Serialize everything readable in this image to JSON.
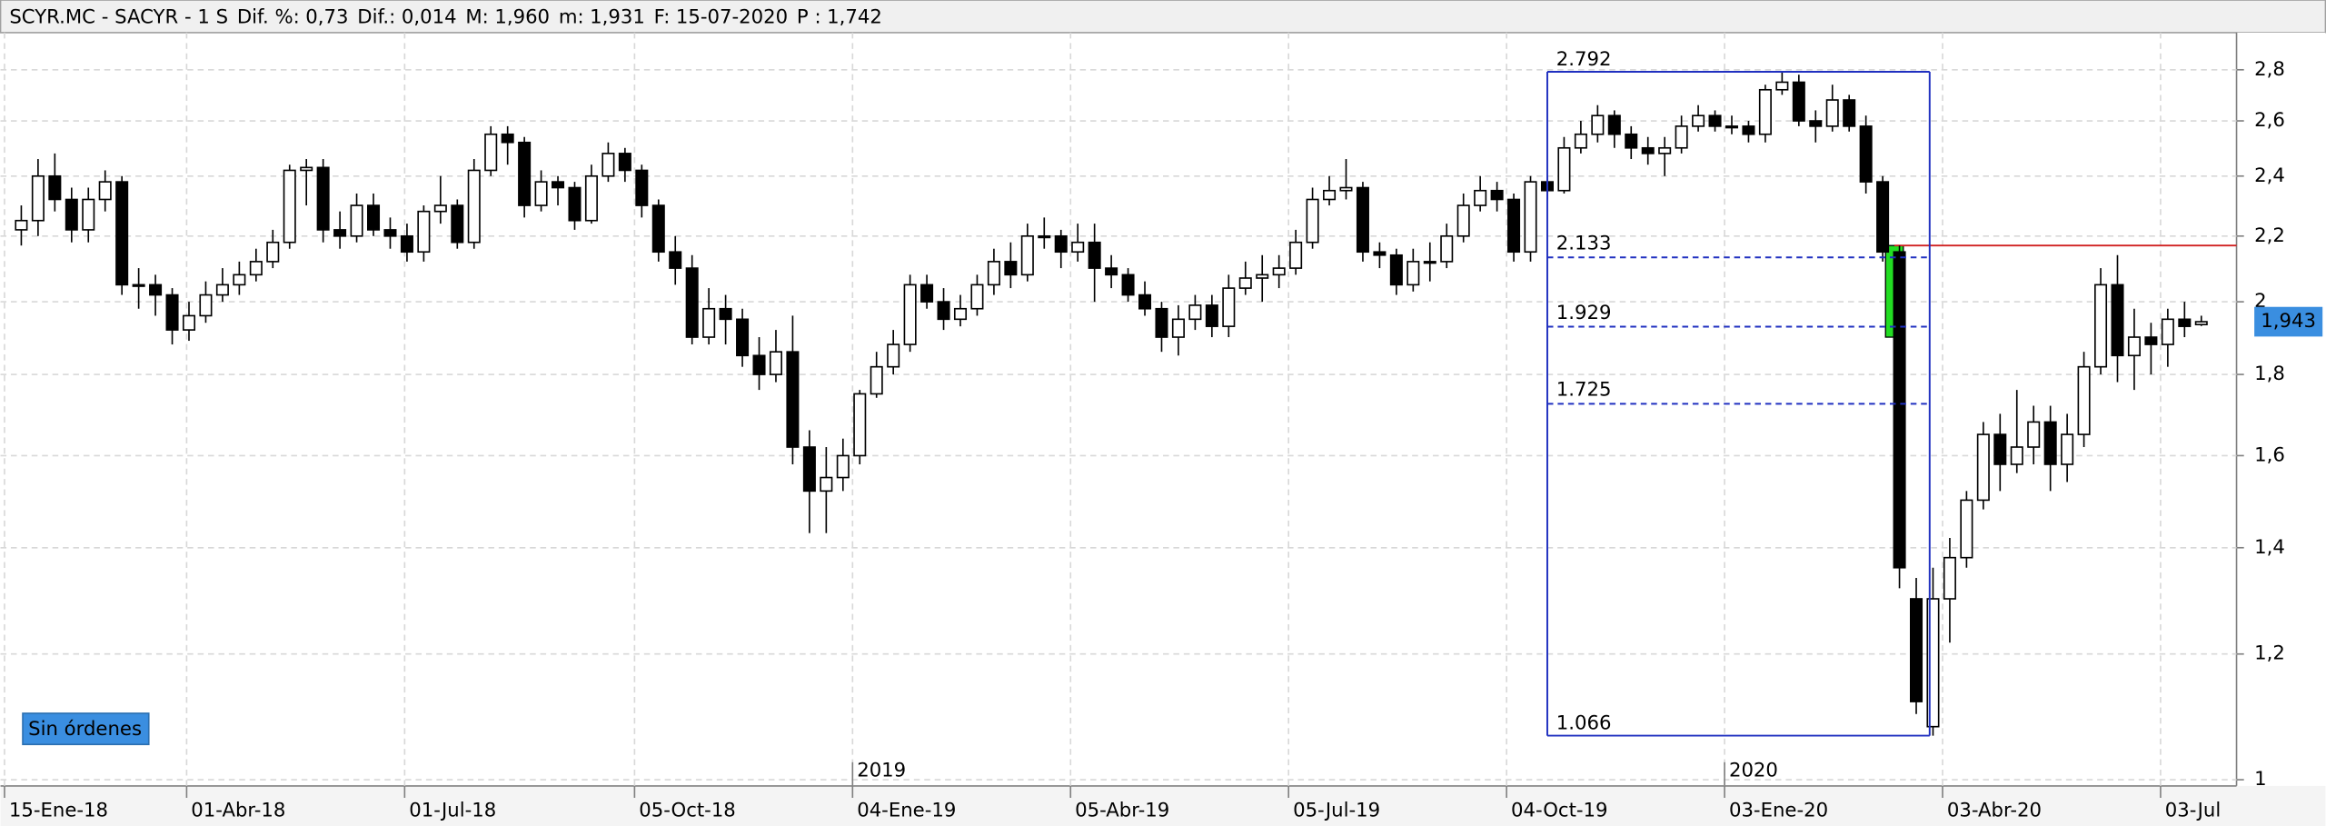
{
  "chart_data": {
    "type": "candlestick",
    "log_scale": true,
    "grid": true,
    "header": [
      {
        "text": "SCYR.MC - SACYR -  1 S",
        "color": "#000000"
      },
      {
        "text": "Dif. %:",
        "color": "#000000"
      },
      {
        "text": "0,73",
        "color": "#3a8ee0"
      },
      {
        "text": "Dif.:",
        "color": "#000000"
      },
      {
        "text": "0,014",
        "color": "#3a8ee0"
      },
      {
        "text": "M:",
        "color": "#000000"
      },
      {
        "text": "1,960",
        "color": "#000000"
      },
      {
        "text": "m:",
        "color": "#000000"
      },
      {
        "text": "1,931",
        "color": "#000000"
      },
      {
        "text": "F:",
        "color": "#000000"
      },
      {
        "text": "15-07-2020",
        "color": "#000000"
      },
      {
        "text": "P :",
        "color": "#e02020"
      },
      {
        "text": "1,742",
        "color": "#e02020"
      }
    ],
    "button": "Sin órdenes",
    "xlim": [
      -1.24,
      132.1
    ],
    "ylim": [
      0.991,
      2.955
    ],
    "yticks": [
      1,
      {
        "value": 1.2,
        "label": "1,2"
      },
      {
        "value": 1.4,
        "label": "1,4"
      },
      {
        "value": 1.6,
        "label": "1,6"
      },
      {
        "value": 1.8,
        "label": "1,8"
      },
      2,
      {
        "value": 2.2,
        "label": "2,2"
      },
      {
        "value": 2.4,
        "label": "2,4"
      },
      {
        "value": 2.6,
        "label": "2,6"
      },
      {
        "value": 2.8,
        "label": "2,8"
      }
    ],
    "xticks": [
      {
        "value": -1,
        "label": "15-Ene-18"
      },
      {
        "value": 9.86,
        "label": "01-Abr-18"
      },
      {
        "value": 22.86,
        "label": "01-Jul-18"
      },
      {
        "value": 36.57,
        "label": "05-Oct-18"
      },
      {
        "value": 49.57,
        "label": "04-Ene-19"
      },
      {
        "value": 62.57,
        "label": "05-Abr-19"
      },
      {
        "value": 75.57,
        "label": "05-Jul-19"
      },
      {
        "value": 88.57,
        "label": "04-Oct-19"
      },
      {
        "value": 101.57,
        "label": "03-Ene-20"
      },
      {
        "value": 114.57,
        "label": "03-Abr-20"
      },
      {
        "value": 127.57,
        "label": "03-Jul"
      }
    ],
    "year_ticks": [
      {
        "value": 49.57,
        "label": "2019"
      },
      {
        "value": 101.57,
        "label": "2020"
      }
    ],
    "up_color": "#ffffff",
    "down_color": "#000000",
    "open": [
      2.22,
      2.25,
      2.4,
      2.32,
      2.22,
      2.32,
      2.38,
      2.05,
      2.05,
      2.02,
      1.92,
      1.96,
      2.02,
      2.05,
      2.08,
      2.12,
      2.18,
      2.42,
      2.43,
      2.22,
      2.2,
      2.3,
      2.22,
      2.2,
      2.15,
      2.28,
      2.3,
      2.18,
      2.42,
      2.55,
      2.52,
      2.3,
      2.38,
      2.36,
      2.25,
      2.4,
      2.48,
      2.42,
      2.3,
      2.15,
      2.1,
      1.9,
      1.98,
      1.95,
      1.85,
      1.8,
      1.86,
      1.62,
      1.52,
      1.55,
      1.6,
      1.75,
      1.82,
      1.88,
      2.05,
      2.0,
      1.95,
      1.98,
      2.05,
      2.12,
      2.08,
      2.2,
      2.2,
      2.15,
      2.18,
      2.1,
      2.08,
      2.02,
      1.98,
      1.9,
      1.95,
      1.99,
      1.93,
      2.04,
      2.07,
      2.08,
      2.1,
      2.18,
      2.32,
      2.35,
      2.36,
      2.15,
      2.14,
      2.05,
      2.12,
      2.12,
      2.2,
      2.3,
      2.35,
      2.32,
      2.15,
      2.38,
      2.35,
      2.5,
      2.55,
      2.62,
      2.55,
      2.5,
      2.48,
      2.5,
      2.58,
      2.62,
      2.58,
      2.58,
      2.55,
      2.72,
      2.75,
      2.6,
      2.58,
      2.68,
      2.58,
      2.38,
      2.15,
      1.3,
      1.08,
      1.3,
      1.38,
      1.5,
      1.65,
      1.58,
      1.62,
      1.68,
      1.58,
      1.65,
      1.82,
      2.05,
      1.85,
      1.9,
      1.88,
      1.95,
      1.935
    ],
    "high": [
      2.3,
      2.46,
      2.48,
      2.36,
      2.36,
      2.42,
      2.4,
      2.1,
      2.08,
      2.04,
      2.0,
      2.06,
      2.1,
      2.12,
      2.16,
      2.22,
      2.44,
      2.46,
      2.46,
      2.28,
      2.34,
      2.34,
      2.26,
      2.24,
      2.3,
      2.4,
      2.32,
      2.46,
      2.58,
      2.58,
      2.54,
      2.42,
      2.4,
      2.38,
      2.44,
      2.52,
      2.5,
      2.44,
      2.32,
      2.2,
      2.14,
      2.04,
      2.02,
      1.98,
      1.9,
      1.92,
      1.96,
      1.66,
      1.62,
      1.64,
      1.76,
      1.86,
      1.92,
      2.08,
      2.08,
      2.04,
      2.02,
      2.08,
      2.16,
      2.18,
      2.24,
      2.26,
      2.22,
      2.24,
      2.24,
      2.14,
      2.1,
      2.06,
      2.0,
      1.99,
      2.02,
      2.02,
      2.08,
      2.12,
      2.14,
      2.14,
      2.22,
      2.36,
      2.4,
      2.46,
      2.38,
      2.18,
      2.16,
      2.16,
      2.18,
      2.24,
      2.34,
      2.4,
      2.38,
      2.34,
      2.4,
      2.4,
      2.54,
      2.6,
      2.66,
      2.64,
      2.58,
      2.54,
      2.54,
      2.62,
      2.66,
      2.64,
      2.62,
      2.6,
      2.74,
      2.792,
      2.78,
      2.64,
      2.74,
      2.7,
      2.62,
      2.4,
      2.17,
      1.34,
      1.36,
      1.42,
      1.52,
      1.68,
      1.7,
      1.76,
      1.72,
      1.72,
      1.7,
      1.86,
      2.1,
      2.14,
      1.98,
      1.94,
      1.98,
      2.0,
      1.96
    ],
    "low": [
      2.17,
      2.2,
      2.28,
      2.18,
      2.18,
      2.28,
      2.02,
      1.98,
      1.96,
      1.88,
      1.89,
      1.94,
      2.0,
      2.02,
      2.06,
      2.1,
      2.16,
      2.3,
      2.18,
      2.16,
      2.18,
      2.2,
      2.16,
      2.12,
      2.12,
      2.24,
      2.16,
      2.16,
      2.4,
      2.44,
      2.26,
      2.28,
      2.3,
      2.22,
      2.24,
      2.38,
      2.38,
      2.26,
      2.12,
      2.05,
      1.88,
      1.88,
      1.88,
      1.82,
      1.76,
      1.78,
      1.58,
      1.43,
      1.43,
      1.52,
      1.58,
      1.74,
      1.8,
      1.86,
      1.98,
      1.92,
      1.93,
      1.96,
      2.02,
      2.04,
      2.06,
      2.16,
      2.1,
      2.12,
      2.0,
      2.04,
      2.0,
      1.96,
      1.86,
      1.85,
      1.92,
      1.9,
      1.9,
      2.02,
      2.0,
      2.04,
      2.08,
      2.16,
      2.3,
      2.32,
      2.12,
      2.1,
      2.02,
      2.03,
      2.06,
      2.1,
      2.18,
      2.28,
      2.28,
      2.12,
      2.12,
      2.32,
      2.34,
      2.48,
      2.52,
      2.5,
      2.46,
      2.44,
      2.4,
      2.48,
      2.56,
      2.56,
      2.55,
      2.52,
      2.52,
      2.7,
      2.58,
      2.52,
      2.56,
      2.56,
      2.34,
      2.12,
      1.32,
      1.1,
      1.066,
      1.22,
      1.36,
      1.48,
      1.52,
      1.56,
      1.58,
      1.52,
      1.54,
      1.62,
      1.8,
      1.78,
      1.76,
      1.8,
      1.82,
      1.9,
      1.931
    ],
    "close": [
      2.25,
      2.4,
      2.32,
      2.22,
      2.32,
      2.38,
      2.05,
      2.05,
      2.02,
      1.92,
      1.96,
      2.02,
      2.05,
      2.08,
      2.12,
      2.18,
      2.42,
      2.43,
      2.22,
      2.2,
      2.3,
      2.22,
      2.2,
      2.15,
      2.28,
      2.3,
      2.18,
      2.42,
      2.55,
      2.52,
      2.3,
      2.38,
      2.36,
      2.25,
      2.4,
      2.48,
      2.42,
      2.3,
      2.15,
      2.1,
      1.9,
      1.98,
      1.95,
      1.85,
      1.8,
      1.86,
      1.62,
      1.52,
      1.55,
      1.6,
      1.75,
      1.82,
      1.88,
      2.05,
      2.0,
      1.95,
      1.98,
      2.05,
      2.12,
      2.08,
      2.2,
      2.2,
      2.15,
      2.18,
      2.1,
      2.08,
      2.02,
      1.98,
      1.9,
      1.95,
      1.99,
      1.93,
      2.04,
      2.07,
      2.08,
      2.1,
      2.18,
      2.32,
      2.35,
      2.36,
      2.15,
      2.14,
      2.05,
      2.12,
      2.12,
      2.2,
      2.3,
      2.35,
      2.32,
      2.15,
      2.38,
      2.35,
      2.5,
      2.55,
      2.62,
      2.55,
      2.5,
      2.48,
      2.5,
      2.58,
      2.62,
      2.58,
      2.58,
      2.55,
      2.72,
      2.75,
      2.6,
      2.58,
      2.68,
      2.58,
      2.38,
      2.15,
      1.36,
      1.12,
      1.3,
      1.38,
      1.5,
      1.65,
      1.58,
      1.62,
      1.68,
      1.58,
      1.65,
      1.82,
      2.05,
      1.85,
      1.9,
      1.88,
      1.95,
      1.93,
      1.943
    ],
    "fib": {
      "x": [
        91,
        113.8
      ],
      "top": 2.792,
      "bottom": 1.066,
      "levels": [
        2.133,
        1.929,
        1.725
      ],
      "color": "#2030c0"
    },
    "highlight": {
      "x": 111.7,
      "range": [
        1.9,
        2.17
      ],
      "color": "#22dd22"
    },
    "red_line": {
      "x": 111.7,
      "value": 2.17,
      "color": "#d02020"
    },
    "last": {
      "value": 1.943,
      "label": "1,943",
      "color": "#3a8ee0"
    }
  }
}
